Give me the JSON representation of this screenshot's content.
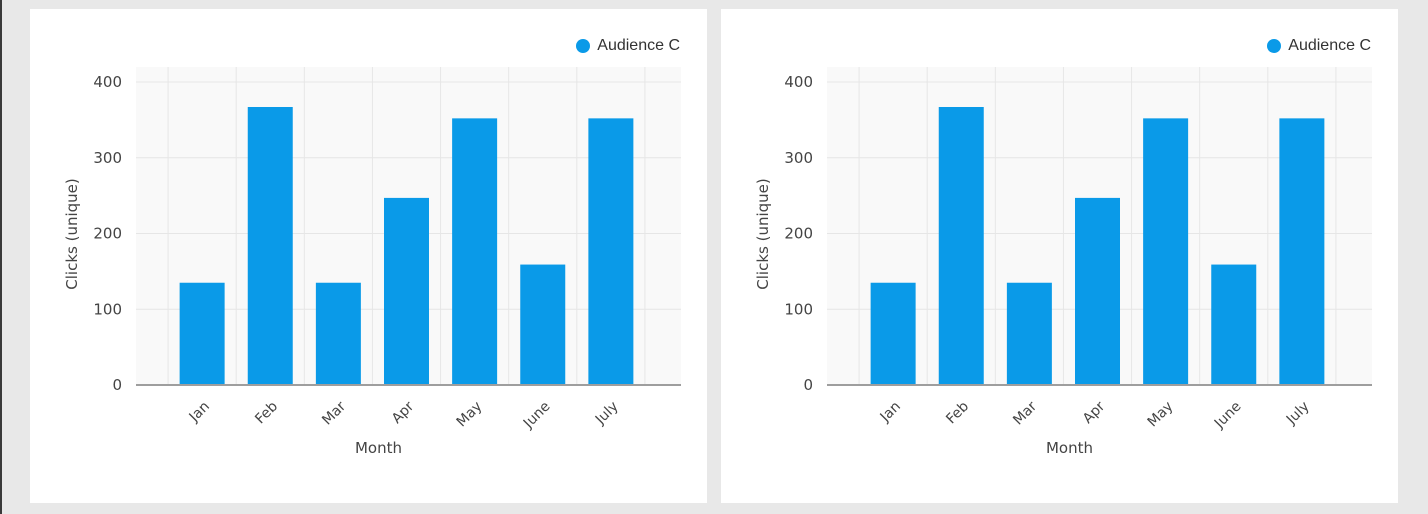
{
  "colors": {
    "background": "#e8e8e8",
    "card": "#ffffff",
    "plot_area": "#f9f9f9",
    "grid": "#e6e6e6",
    "axis": "#9e9e9e",
    "bar": "#0a9ae8",
    "text": "#444444"
  },
  "chart_data": [
    {
      "type": "bar",
      "categories": [
        "Jan",
        "Feb",
        "Mar",
        "Apr",
        "May",
        "June",
        "July"
      ],
      "series": [
        {
          "name": "Audience C",
          "values": [
            135,
            367,
            135,
            247,
            352,
            159,
            352
          ]
        }
      ],
      "xlabel": "Month",
      "ylabel": "Clicks (unique)",
      "ylim": [
        0,
        400
      ],
      "yticks": [
        "0",
        "100",
        "200",
        "300",
        "400"
      ],
      "grid": true,
      "legend": "top-right"
    },
    {
      "type": "bar",
      "categories": [
        "Jan",
        "Feb",
        "Mar",
        "Apr",
        "May",
        "June",
        "July"
      ],
      "series": [
        {
          "name": "Audience C",
          "values": [
            135,
            367,
            135,
            247,
            352,
            159,
            352
          ]
        }
      ],
      "xlabel": "Month",
      "ylabel": "Clicks (unique)",
      "ylim": [
        0,
        400
      ],
      "yticks": [
        "0",
        "100",
        "200",
        "300",
        "400"
      ],
      "grid": true,
      "legend": "top-right"
    }
  ]
}
